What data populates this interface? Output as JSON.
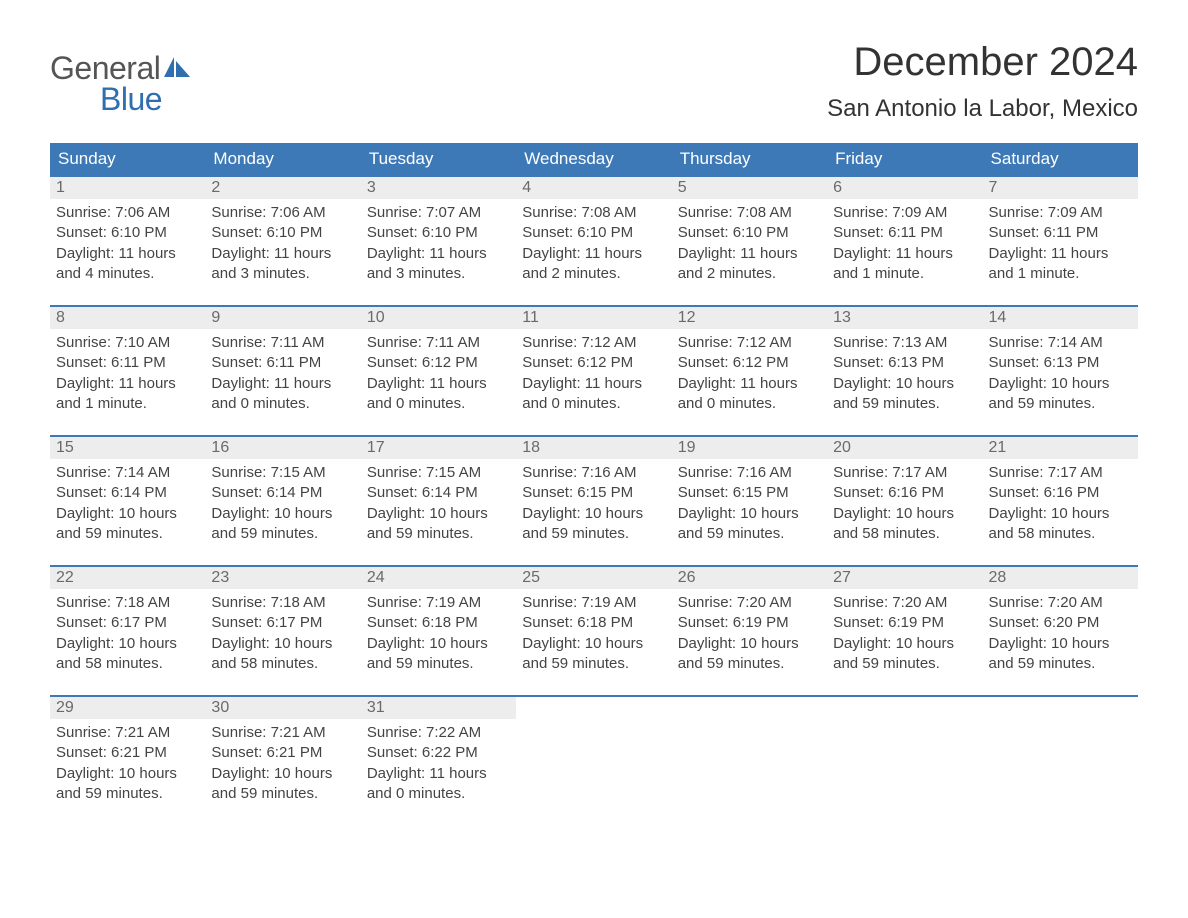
{
  "logo": {
    "text1": "General",
    "text2": "Blue",
    "sail_color": "#2f6fb0"
  },
  "title": "December 2024",
  "location": "San Antonio la Labor, Mexico",
  "header_bg": "#3d79b6",
  "daynum_bg": "#ededed",
  "columns": [
    "Sunday",
    "Monday",
    "Tuesday",
    "Wednesday",
    "Thursday",
    "Friday",
    "Saturday"
  ],
  "weeks": [
    [
      {
        "n": "1",
        "sr": "Sunrise: 7:06 AM",
        "ss": "Sunset: 6:10 PM",
        "d1": "Daylight: 11 hours",
        "d2": "and 4 minutes."
      },
      {
        "n": "2",
        "sr": "Sunrise: 7:06 AM",
        "ss": "Sunset: 6:10 PM",
        "d1": "Daylight: 11 hours",
        "d2": "and 3 minutes."
      },
      {
        "n": "3",
        "sr": "Sunrise: 7:07 AM",
        "ss": "Sunset: 6:10 PM",
        "d1": "Daylight: 11 hours",
        "d2": "and 3 minutes."
      },
      {
        "n": "4",
        "sr": "Sunrise: 7:08 AM",
        "ss": "Sunset: 6:10 PM",
        "d1": "Daylight: 11 hours",
        "d2": "and 2 minutes."
      },
      {
        "n": "5",
        "sr": "Sunrise: 7:08 AM",
        "ss": "Sunset: 6:10 PM",
        "d1": "Daylight: 11 hours",
        "d2": "and 2 minutes."
      },
      {
        "n": "6",
        "sr": "Sunrise: 7:09 AM",
        "ss": "Sunset: 6:11 PM",
        "d1": "Daylight: 11 hours",
        "d2": "and 1 minute."
      },
      {
        "n": "7",
        "sr": "Sunrise: 7:09 AM",
        "ss": "Sunset: 6:11 PM",
        "d1": "Daylight: 11 hours",
        "d2": "and 1 minute."
      }
    ],
    [
      {
        "n": "8",
        "sr": "Sunrise: 7:10 AM",
        "ss": "Sunset: 6:11 PM",
        "d1": "Daylight: 11 hours",
        "d2": "and 1 minute."
      },
      {
        "n": "9",
        "sr": "Sunrise: 7:11 AM",
        "ss": "Sunset: 6:11 PM",
        "d1": "Daylight: 11 hours",
        "d2": "and 0 minutes."
      },
      {
        "n": "10",
        "sr": "Sunrise: 7:11 AM",
        "ss": "Sunset: 6:12 PM",
        "d1": "Daylight: 11 hours",
        "d2": "and 0 minutes."
      },
      {
        "n": "11",
        "sr": "Sunrise: 7:12 AM",
        "ss": "Sunset: 6:12 PM",
        "d1": "Daylight: 11 hours",
        "d2": "and 0 minutes."
      },
      {
        "n": "12",
        "sr": "Sunrise: 7:12 AM",
        "ss": "Sunset: 6:12 PM",
        "d1": "Daylight: 11 hours",
        "d2": "and 0 minutes."
      },
      {
        "n": "13",
        "sr": "Sunrise: 7:13 AM",
        "ss": "Sunset: 6:13 PM",
        "d1": "Daylight: 10 hours",
        "d2": "and 59 minutes."
      },
      {
        "n": "14",
        "sr": "Sunrise: 7:14 AM",
        "ss": "Sunset: 6:13 PM",
        "d1": "Daylight: 10 hours",
        "d2": "and 59 minutes."
      }
    ],
    [
      {
        "n": "15",
        "sr": "Sunrise: 7:14 AM",
        "ss": "Sunset: 6:14 PM",
        "d1": "Daylight: 10 hours",
        "d2": "and 59 minutes."
      },
      {
        "n": "16",
        "sr": "Sunrise: 7:15 AM",
        "ss": "Sunset: 6:14 PM",
        "d1": "Daylight: 10 hours",
        "d2": "and 59 minutes."
      },
      {
        "n": "17",
        "sr": "Sunrise: 7:15 AM",
        "ss": "Sunset: 6:14 PM",
        "d1": "Daylight: 10 hours",
        "d2": "and 59 minutes."
      },
      {
        "n": "18",
        "sr": "Sunrise: 7:16 AM",
        "ss": "Sunset: 6:15 PM",
        "d1": "Daylight: 10 hours",
        "d2": "and 59 minutes."
      },
      {
        "n": "19",
        "sr": "Sunrise: 7:16 AM",
        "ss": "Sunset: 6:15 PM",
        "d1": "Daylight: 10 hours",
        "d2": "and 59 minutes."
      },
      {
        "n": "20",
        "sr": "Sunrise: 7:17 AM",
        "ss": "Sunset: 6:16 PM",
        "d1": "Daylight: 10 hours",
        "d2": "and 58 minutes."
      },
      {
        "n": "21",
        "sr": "Sunrise: 7:17 AM",
        "ss": "Sunset: 6:16 PM",
        "d1": "Daylight: 10 hours",
        "d2": "and 58 minutes."
      }
    ],
    [
      {
        "n": "22",
        "sr": "Sunrise: 7:18 AM",
        "ss": "Sunset: 6:17 PM",
        "d1": "Daylight: 10 hours",
        "d2": "and 58 minutes."
      },
      {
        "n": "23",
        "sr": "Sunrise: 7:18 AM",
        "ss": "Sunset: 6:17 PM",
        "d1": "Daylight: 10 hours",
        "d2": "and 58 minutes."
      },
      {
        "n": "24",
        "sr": "Sunrise: 7:19 AM",
        "ss": "Sunset: 6:18 PM",
        "d1": "Daylight: 10 hours",
        "d2": "and 59 minutes."
      },
      {
        "n": "25",
        "sr": "Sunrise: 7:19 AM",
        "ss": "Sunset: 6:18 PM",
        "d1": "Daylight: 10 hours",
        "d2": "and 59 minutes."
      },
      {
        "n": "26",
        "sr": "Sunrise: 7:20 AM",
        "ss": "Sunset: 6:19 PM",
        "d1": "Daylight: 10 hours",
        "d2": "and 59 minutes."
      },
      {
        "n": "27",
        "sr": "Sunrise: 7:20 AM",
        "ss": "Sunset: 6:19 PM",
        "d1": "Daylight: 10 hours",
        "d2": "and 59 minutes."
      },
      {
        "n": "28",
        "sr": "Sunrise: 7:20 AM",
        "ss": "Sunset: 6:20 PM",
        "d1": "Daylight: 10 hours",
        "d2": "and 59 minutes."
      }
    ],
    [
      {
        "n": "29",
        "sr": "Sunrise: 7:21 AM",
        "ss": "Sunset: 6:21 PM",
        "d1": "Daylight: 10 hours",
        "d2": "and 59 minutes."
      },
      {
        "n": "30",
        "sr": "Sunrise: 7:21 AM",
        "ss": "Sunset: 6:21 PM",
        "d1": "Daylight: 10 hours",
        "d2": "and 59 minutes."
      },
      {
        "n": "31",
        "sr": "Sunrise: 7:22 AM",
        "ss": "Sunset: 6:22 PM",
        "d1": "Daylight: 11 hours",
        "d2": "and 0 minutes."
      },
      null,
      null,
      null,
      null
    ]
  ]
}
